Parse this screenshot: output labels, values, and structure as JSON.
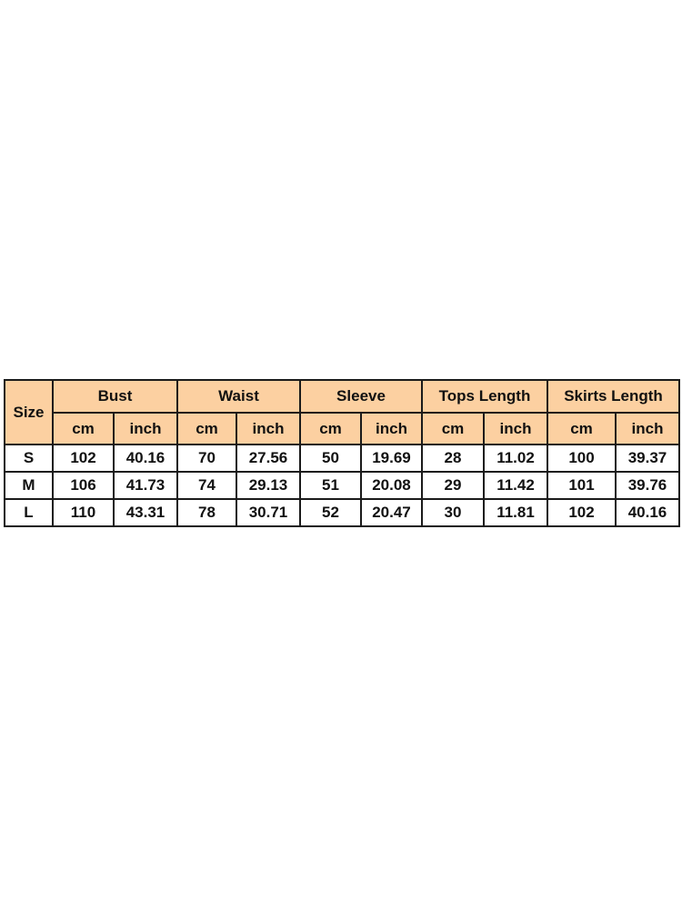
{
  "table": {
    "size_header": "Size",
    "groups": [
      "Bust",
      "Waist",
      "Sleeve",
      "Tops Length",
      "Skirts Length"
    ],
    "units": [
      "cm",
      "inch"
    ],
    "rows": [
      {
        "size": "S",
        "values": [
          "102",
          "40.16",
          "70",
          "27.56",
          "50",
          "19.69",
          "28",
          "11.02",
          "100",
          "39.37"
        ]
      },
      {
        "size": "M",
        "values": [
          "106",
          "41.73",
          "74",
          "29.13",
          "51",
          "20.08",
          "29",
          "11.42",
          "101",
          "39.76"
        ]
      },
      {
        "size": "L",
        "values": [
          "110",
          "43.31",
          "78",
          "30.71",
          "52",
          "20.47",
          "30",
          "11.81",
          "102",
          "40.16"
        ]
      }
    ],
    "header_color": "#fcd0a1"
  }
}
